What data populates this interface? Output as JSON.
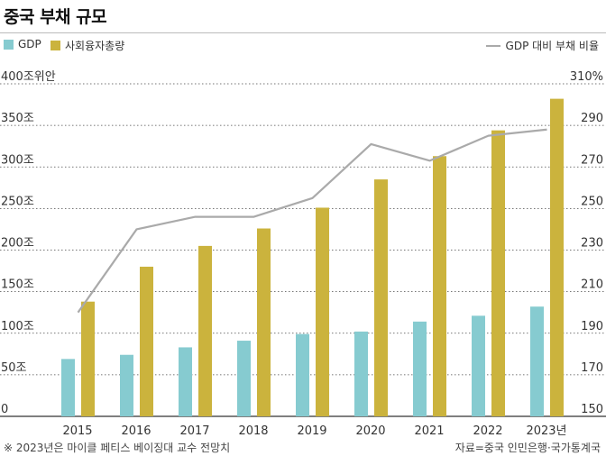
{
  "title": "중국 부채 규모",
  "legend": {
    "gdp": "GDP",
    "financing": "사회융자총량",
    "ratio": "GDP 대비 부채 비율"
  },
  "colors": {
    "gdp": "#86cbd0",
    "financing": "#cbb33d",
    "ratio": "#aaaaaa",
    "grid": "#4a4a4a"
  },
  "left_ticks": [
    "0",
    "50조",
    "100조",
    "150조",
    "200조",
    "250조",
    "300조",
    "350조",
    "400조위안"
  ],
  "right_ticks": [
    "150",
    "170",
    "190",
    "210",
    "230",
    "250",
    "270",
    "290",
    "310%"
  ],
  "x_labels": [
    "2015",
    "2016",
    "2017",
    "2018",
    "2019",
    "2020",
    "2021",
    "2022",
    "2023년"
  ],
  "footnote_left": "※ 2023년은 마이클 페티스 베이징대 교수 전망치",
  "footnote_right": "자료=중국 인민은행·국가통계국",
  "chart_data": {
    "type": "bar",
    "categories": [
      "2015",
      "2016",
      "2017",
      "2018",
      "2019",
      "2020",
      "2021",
      "2022",
      "2023"
    ],
    "series": [
      {
        "name": "GDP",
        "axis": "left",
        "values": [
          69,
          74,
          83,
          91,
          99,
          102,
          114,
          121,
          132
        ]
      },
      {
        "name": "사회융자총량",
        "axis": "left",
        "values": [
          138,
          180,
          205,
          226,
          251,
          285,
          313,
          344,
          382
        ]
      },
      {
        "name": "GDP 대비 부채 비율",
        "type": "line",
        "axis": "right",
        "values": [
          200,
          240,
          246,
          246,
          255,
          281,
          273,
          285,
          288
        ]
      }
    ],
    "ylim_left": [
      0,
      400
    ],
    "ylim_right": [
      150,
      310
    ],
    "grid": true,
    "legend": "top"
  }
}
